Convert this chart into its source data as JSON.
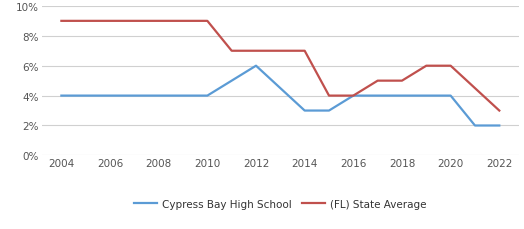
{
  "cypress_years": [
    2004,
    2006,
    2008,
    2010,
    2012,
    2014,
    2015,
    2016,
    2018,
    2020,
    2021,
    2022
  ],
  "cypress_values": [
    0.04,
    0.04,
    0.04,
    0.04,
    0.06,
    0.03,
    0.03,
    0.04,
    0.04,
    0.04,
    0.02,
    0.02
  ],
  "florida_years": [
    2004,
    2006,
    2008,
    2010,
    2011,
    2013,
    2014,
    2015,
    2016,
    2017,
    2018,
    2019,
    2020,
    2022
  ],
  "florida_values": [
    0.09,
    0.09,
    0.09,
    0.09,
    0.07,
    0.07,
    0.07,
    0.04,
    0.04,
    0.05,
    0.05,
    0.06,
    0.06,
    0.03
  ],
  "cypress_color": "#5b9bd5",
  "florida_color": "#c0504d",
  "cypress_label": "Cypress Bay High School",
  "florida_label": "(FL) State Average",
  "ylim": [
    0,
    0.1
  ],
  "yticks": [
    0,
    0.02,
    0.04,
    0.06,
    0.08,
    0.1
  ],
  "xticks": [
    2004,
    2006,
    2008,
    2010,
    2012,
    2014,
    2016,
    2018,
    2020,
    2022
  ],
  "xlim_left": 2003.2,
  "xlim_right": 2022.8,
  "line_width": 1.6,
  "legend_fontsize": 7.5,
  "tick_fontsize": 7.5,
  "background_color": "#ffffff",
  "grid_color": "#d0d0d0"
}
